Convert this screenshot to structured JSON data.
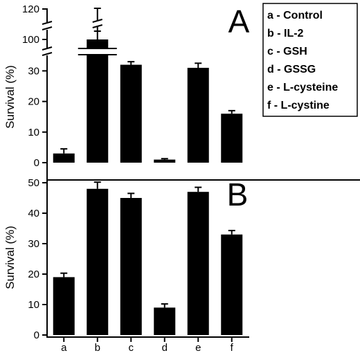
{
  "chart_data": [
    {
      "type": "bar",
      "panel_label": "A",
      "categories": [
        "a",
        "b",
        "c",
        "d",
        "e",
        "f"
      ],
      "values": [
        3,
        100,
        32,
        1,
        31,
        16
      ],
      "errors": [
        1.5,
        3,
        1,
        0.3,
        1.5,
        1
      ],
      "ylabel": "Survival (%)",
      "yaxis_break": {
        "from": 35,
        "to": 95
      },
      "yticks_lower": [
        "0",
        "10",
        "20",
        "30"
      ],
      "yticks_upper": [
        "100",
        "120"
      ],
      "ylim": [
        0,
        120
      ]
    },
    {
      "type": "bar",
      "panel_label": "B",
      "categories": [
        "a",
        "b",
        "c",
        "d",
        "e",
        "f"
      ],
      "values": [
        19,
        48,
        45,
        9,
        47,
        33
      ],
      "errors": [
        1.3,
        2.2,
        1.5,
        1.2,
        1.5,
        1.3
      ],
      "ylabel": "Survival (%)",
      "yticks": [
        "0",
        "10",
        "20",
        "30",
        "40",
        "50"
      ],
      "ylim": [
        0,
        55
      ]
    }
  ],
  "legend": {
    "items": [
      "a - Control",
      "b - IL-2",
      "c - GSH",
      "d - GSSG",
      "e - L-cysteine",
      "f  - L-cystine"
    ]
  },
  "colors": {
    "bars": "#000000",
    "background": "#ffffff"
  }
}
